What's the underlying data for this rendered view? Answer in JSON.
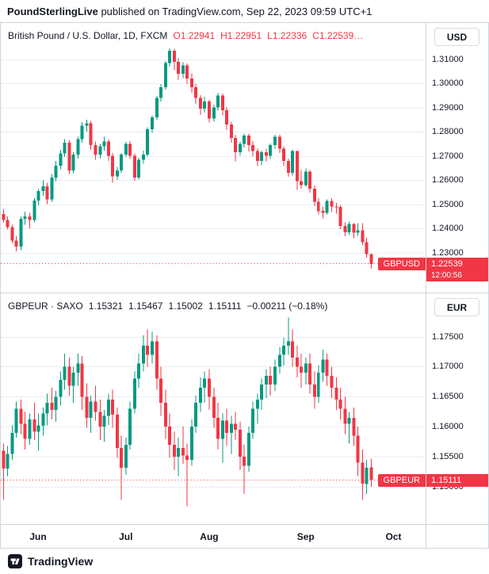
{
  "header": {
    "publisher": "PoundSterlingLive",
    "suffix": " published on TradingView.com, Sep 22, 2023 09:59 UTC+1"
  },
  "footer": {
    "brand": "TradingView"
  },
  "colors": {
    "up": "#089981",
    "down": "#F23645",
    "grid": "#ebedf2",
    "badge": "#F23645",
    "text": "#131722",
    "border": "#d1d4dc"
  },
  "time_axis": {
    "total_slots": 97,
    "months": [
      {
        "label": "Jun",
        "slot": 8
      },
      {
        "label": "Jul",
        "slot": 28
      },
      {
        "label": "Aug",
        "slot": 47
      },
      {
        "label": "Sep",
        "slot": 69
      },
      {
        "label": "Oct",
        "slot": 89
      }
    ]
  },
  "chart_data": [
    {
      "type": "candlestick",
      "symbol": "GBPUSD",
      "title": "British Pound / U.S. Dollar, 1D, FXCM",
      "ohlc": [
        "O1.22941",
        "H1.22951",
        "L1.22336",
        "C1.22539…"
      ],
      "currency": "USD",
      "price_label": {
        "symbol": "GBPUSD",
        "value": "1.22539",
        "countdown": "12:00:56"
      },
      "last_price": 1.22539,
      "price_range": [
        1.325,
        1.2135
      ],
      "y_ticks": [
        {
          "label": "1.31000",
          "value": 1.31
        },
        {
          "label": "1.30000",
          "value": 1.3
        },
        {
          "label": "1.29000",
          "value": 1.29
        },
        {
          "label": "1.28000",
          "value": 1.28
        },
        {
          "label": "1.27000",
          "value": 1.27
        },
        {
          "label": "1.26000",
          "value": 1.26
        },
        {
          "label": "1.25000",
          "value": 1.25
        },
        {
          "label": "1.24000",
          "value": 1.24
        },
        {
          "label": "1.23000",
          "value": 1.23
        }
      ],
      "candles": [
        [
          1.246,
          1.248,
          1.2425,
          1.2435
        ],
        [
          1.2435,
          1.245,
          1.2395,
          1.2405
        ],
        [
          1.2405,
          1.2415,
          1.234,
          1.235
        ],
        [
          1.235,
          1.237,
          1.2305,
          1.2325
        ],
        [
          1.2325,
          1.245,
          1.231,
          1.244
        ],
        [
          1.244,
          1.247,
          1.2415,
          1.245
        ],
        [
          1.245,
          1.2465,
          1.24,
          1.2435
        ],
        [
          1.2435,
          1.2525,
          1.2425,
          1.2515
        ],
        [
          1.2515,
          1.2565,
          1.2495,
          1.2555
        ],
        [
          1.2555,
          1.26,
          1.2535,
          1.2575
        ],
        [
          1.2575,
          1.259,
          1.25,
          1.252
        ],
        [
          1.252,
          1.2625,
          1.251,
          1.261
        ],
        [
          1.261,
          1.268,
          1.2595,
          1.266
        ],
        [
          1.266,
          1.2725,
          1.2645,
          1.271
        ],
        [
          1.271,
          1.277,
          1.2695,
          1.2755
        ],
        [
          1.2755,
          1.2765,
          1.2625,
          1.264
        ],
        [
          1.264,
          1.2715,
          1.2628,
          1.2705
        ],
        [
          1.2705,
          1.278,
          1.269,
          1.277
        ],
        [
          1.277,
          1.284,
          1.2755,
          1.2825
        ],
        [
          1.2825,
          1.285,
          1.28,
          1.2835
        ],
        [
          1.2835,
          1.2845,
          1.2725,
          1.2745
        ],
        [
          1.2745,
          1.276,
          1.2685,
          1.2705
        ],
        [
          1.2705,
          1.275,
          1.269,
          1.274
        ],
        [
          1.274,
          1.278,
          1.272,
          1.276
        ],
        [
          1.276,
          1.2768,
          1.268,
          1.27
        ],
        [
          1.27,
          1.2712,
          1.259,
          1.2615
        ],
        [
          1.2615,
          1.2655,
          1.26,
          1.264
        ],
        [
          1.264,
          1.2712,
          1.263,
          1.2705
        ],
        [
          1.2705,
          1.2758,
          1.2695,
          1.275
        ],
        [
          1.275,
          1.2762,
          1.2688,
          1.27
        ],
        [
          1.27,
          1.271,
          1.2598,
          1.261
        ],
        [
          1.261,
          1.2692,
          1.2602,
          1.2685
        ],
        [
          1.2685,
          1.2722,
          1.2668,
          1.2705
        ],
        [
          1.2705,
          1.2818,
          1.2698,
          1.281
        ],
        [
          1.281,
          1.2868,
          1.2795,
          1.286
        ],
        [
          1.286,
          1.2948,
          1.285,
          1.294
        ],
        [
          1.294,
          1.2998,
          1.2925,
          1.2985
        ],
        [
          1.2985,
          1.3092,
          1.2975,
          1.3085
        ],
        [
          1.3085,
          1.3145,
          1.307,
          1.3135
        ],
        [
          1.3135,
          1.3142,
          1.3055,
          1.309
        ],
        [
          1.309,
          1.3105,
          1.3015,
          1.304
        ],
        [
          1.304,
          1.3088,
          1.3022,
          1.3075
        ],
        [
          1.3075,
          1.3082,
          1.2998,
          1.302
        ],
        [
          1.302,
          1.3042,
          1.2962,
          1.2985
        ],
        [
          1.2985,
          1.2998,
          1.2915,
          1.294
        ],
        [
          1.294,
          1.2952,
          1.287,
          1.2895
        ],
        [
          1.2895,
          1.2945,
          1.288,
          1.2925
        ],
        [
          1.2925,
          1.2932,
          1.2838,
          1.2855
        ],
        [
          1.2855,
          1.2912,
          1.2842,
          1.29
        ],
        [
          1.29,
          1.2962,
          1.2888,
          1.295
        ],
        [
          1.295,
          1.2958,
          1.2868,
          1.289
        ],
        [
          1.289,
          1.2902,
          1.2808,
          1.283
        ],
        [
          1.283,
          1.2842,
          1.2755,
          1.2775
        ],
        [
          1.2775,
          1.2788,
          1.2678,
          1.2715
        ],
        [
          1.2715,
          1.2758,
          1.27,
          1.275
        ],
        [
          1.275,
          1.2792,
          1.2735,
          1.2785
        ],
        [
          1.2785,
          1.2792,
          1.2718,
          1.2745
        ],
        [
          1.2745,
          1.2762,
          1.2698,
          1.272
        ],
        [
          1.272,
          1.273,
          1.2658,
          1.268
        ],
        [
          1.268,
          1.2722,
          1.2662,
          1.2715
        ],
        [
          1.2715,
          1.2728,
          1.2678,
          1.27
        ],
        [
          1.27,
          1.2752,
          1.2688,
          1.2745
        ],
        [
          1.2745,
          1.2788,
          1.273,
          1.278
        ],
        [
          1.278,
          1.2788,
          1.2712,
          1.273
        ],
        [
          1.273,
          1.274,
          1.2658,
          1.268
        ],
        [
          1.268,
          1.269,
          1.2613,
          1.263
        ],
        [
          1.263,
          1.2725,
          1.2618,
          1.272
        ],
        [
          1.272,
          1.2722,
          1.256,
          1.2595
        ],
        [
          1.2595,
          1.2642,
          1.2565,
          1.258
        ],
        [
          1.258,
          1.2648,
          1.2572,
          1.2635
        ],
        [
          1.2635,
          1.2642,
          1.2548,
          1.2565
        ],
        [
          1.2565,
          1.2578,
          1.2492,
          1.251
        ],
        [
          1.251,
          1.2525,
          1.2458,
          1.2472
        ],
        [
          1.2472,
          1.249,
          1.2442,
          1.2465
        ],
        [
          1.2465,
          1.252,
          1.2458,
          1.2513
        ],
        [
          1.2513,
          1.2525,
          1.2468,
          1.2491
        ],
        [
          1.2491,
          1.2505,
          1.2462,
          1.2489
        ],
        [
          1.2489,
          1.2495,
          1.2398,
          1.241
        ],
        [
          1.241,
          1.2425,
          1.2368,
          1.2384
        ],
        [
          1.2384,
          1.2428,
          1.2372,
          1.2418
        ],
        [
          1.2418,
          1.2422,
          1.236,
          1.2383
        ],
        [
          1.2383,
          1.2422,
          1.237,
          1.2393
        ],
        [
          1.2393,
          1.2422,
          1.2332,
          1.2343
        ],
        [
          1.2343,
          1.2362,
          1.228,
          1.2294
        ],
        [
          1.22941,
          1.22951,
          1.22336,
          1.22539
        ]
      ]
    },
    {
      "type": "candlestick",
      "symbol": "GBPEUR",
      "title": "GBPEUR · SAXO",
      "values": [
        "1.15321",
        "1.15467",
        "1.15002",
        "1.15111",
        "−0.00211 (−0.18%)"
      ],
      "currency": "EUR",
      "price_label": {
        "symbol": "GBPEUR",
        "value": "1.15111"
      },
      "last_price": 1.15111,
      "price_range": [
        1.1822,
        1.1438
      ],
      "y_ticks": [
        {
          "label": "1.17500",
          "value": 1.175
        },
        {
          "label": "1.17000",
          "value": 1.17
        },
        {
          "label": "1.16500",
          "value": 1.165
        },
        {
          "label": "1.16000",
          "value": 1.16
        },
        {
          "label": "1.15500",
          "value": 1.155
        },
        {
          "label": "1.15000",
          "value": 1.15
        }
      ],
      "candles": [
        [
          1.156,
          1.1572,
          1.1478,
          1.153
        ],
        [
          1.153,
          1.1568,
          1.1518,
          1.1555
        ],
        [
          1.1555,
          1.1602,
          1.1545,
          1.159
        ],
        [
          1.159,
          1.1642,
          1.1582,
          1.163
        ],
        [
          1.163,
          1.1645,
          1.1588,
          1.1605
        ],
        [
          1.1605,
          1.1625,
          1.1562,
          1.158
        ],
        [
          1.158,
          1.1622,
          1.157,
          1.1612
        ],
        [
          1.1612,
          1.164,
          1.1578,
          1.1592
        ],
        [
          1.1592,
          1.1622,
          1.156,
          1.1602
        ],
        [
          1.1602,
          1.1632,
          1.1585,
          1.1622
        ],
        [
          1.1622,
          1.1655,
          1.1602,
          1.164
        ],
        [
          1.164,
          1.1665,
          1.1612,
          1.1628
        ],
        [
          1.1628,
          1.166,
          1.1608,
          1.165
        ],
        [
          1.165,
          1.1692,
          1.1635,
          1.1678
        ],
        [
          1.1678,
          1.1722,
          1.1662,
          1.17
        ],
        [
          1.17,
          1.1715,
          1.1652,
          1.1668
        ],
        [
          1.1668,
          1.17,
          1.164,
          1.169
        ],
        [
          1.169,
          1.1722,
          1.1668,
          1.1705
        ],
        [
          1.1705,
          1.1718,
          1.1628,
          1.165
        ],
        [
          1.165,
          1.1672,
          1.1598,
          1.1615
        ],
        [
          1.1615,
          1.1652,
          1.159,
          1.1642
        ],
        [
          1.1642,
          1.1668,
          1.161,
          1.1625
        ],
        [
          1.1625,
          1.1645,
          1.1578,
          1.16
        ],
        [
          1.16,
          1.1628,
          1.1575,
          1.1618
        ],
        [
          1.1618,
          1.1655,
          1.1602,
          1.1645
        ],
        [
          1.1645,
          1.1662,
          1.1598,
          1.162
        ],
        [
          1.162,
          1.1632,
          1.1548,
          1.1565
        ],
        [
          1.1565,
          1.1585,
          1.1478,
          1.1532
        ],
        [
          1.1532,
          1.1582,
          1.152,
          1.157
        ],
        [
          1.157,
          1.1642,
          1.1562,
          1.163
        ],
        [
          1.163,
          1.1692,
          1.1622,
          1.168
        ],
        [
          1.168,
          1.1722,
          1.1665,
          1.1705
        ],
        [
          1.1705,
          1.1752,
          1.1692,
          1.1735
        ],
        [
          1.1735,
          1.1762,
          1.17,
          1.172
        ],
        [
          1.172,
          1.1758,
          1.1705,
          1.1742
        ],
        [
          1.1742,
          1.1752,
          1.1662,
          1.168
        ],
        [
          1.168,
          1.17,
          1.1618,
          1.164
        ],
        [
          1.164,
          1.1662,
          1.158,
          1.16
        ],
        [
          1.16,
          1.1622,
          1.1548,
          1.157
        ],
        [
          1.157,
          1.1592,
          1.1528,
          1.155
        ],
        [
          1.155,
          1.1582,
          1.1518,
          1.1565
        ],
        [
          1.1565,
          1.16,
          1.1538,
          1.1552
        ],
        [
          1.1552,
          1.1572,
          1.1468,
          1.1545
        ],
        [
          1.1545,
          1.1612,
          1.1535,
          1.16
        ],
        [
          1.16,
          1.1652,
          1.159,
          1.164
        ],
        [
          1.164,
          1.1682,
          1.1625,
          1.1665
        ],
        [
          1.1665,
          1.1692,
          1.164,
          1.168
        ],
        [
          1.168,
          1.1695,
          1.1628,
          1.165
        ],
        [
          1.165,
          1.1665,
          1.1598,
          1.1615
        ],
        [
          1.1615,
          1.164,
          1.1562,
          1.158
        ],
        [
          1.158,
          1.1622,
          1.154,
          1.161
        ],
        [
          1.161,
          1.163,
          1.1568,
          1.159
        ],
        [
          1.159,
          1.1618,
          1.1555,
          1.1605
        ],
        [
          1.1605,
          1.1625,
          1.1578,
          1.1595
        ],
        [
          1.1595,
          1.1608,
          1.1528,
          1.155
        ],
        [
          1.155,
          1.157,
          1.1488,
          1.1535
        ],
        [
          1.1535,
          1.16,
          1.1525,
          1.159
        ],
        [
          1.159,
          1.1642,
          1.158,
          1.163
        ],
        [
          1.163,
          1.1655,
          1.1605,
          1.1645
        ],
        [
          1.1645,
          1.168,
          1.1628,
          1.167
        ],
        [
          1.167,
          1.1695,
          1.1648,
          1.1685
        ],
        [
          1.1685,
          1.17,
          1.1652,
          1.167
        ],
        [
          1.167,
          1.1712,
          1.166,
          1.17
        ],
        [
          1.17,
          1.1732,
          1.1688,
          1.172
        ],
        [
          1.172,
          1.1748,
          1.1702,
          1.1735
        ],
        [
          1.1735,
          1.1782,
          1.172,
          1.1742
        ],
        [
          1.1742,
          1.1762,
          1.17,
          1.1715
        ],
        [
          1.1715,
          1.1735,
          1.1682,
          1.17
        ],
        [
          1.17,
          1.1722,
          1.1665,
          1.169
        ],
        [
          1.169,
          1.1715,
          1.167,
          1.1705
        ],
        [
          1.1705,
          1.1722,
          1.1655,
          1.167
        ],
        [
          1.167,
          1.1692,
          1.163,
          1.165
        ],
        [
          1.165,
          1.1702,
          1.164,
          1.169
        ],
        [
          1.169,
          1.1728,
          1.1675,
          1.1712
        ],
        [
          1.1712,
          1.1722,
          1.1668,
          1.1685
        ],
        [
          1.1685,
          1.17,
          1.1648,
          1.1665
        ],
        [
          1.1665,
          1.1682,
          1.1628,
          1.1645
        ],
        [
          1.1645,
          1.1665,
          1.1612,
          1.163
        ],
        [
          1.163,
          1.165,
          1.1588,
          1.1605
        ],
        [
          1.1605,
          1.1625,
          1.1572,
          1.1615
        ],
        [
          1.1615,
          1.1632,
          1.1568,
          1.1585
        ],
        [
          1.1585,
          1.16,
          1.1518,
          1.154
        ],
        [
          1.154,
          1.1562,
          1.1478,
          1.1505
        ],
        [
          1.1505,
          1.1545,
          1.1488,
          1.1532
        ],
        [
          1.15321,
          1.15467,
          1.15002,
          1.15111
        ]
      ]
    }
  ]
}
